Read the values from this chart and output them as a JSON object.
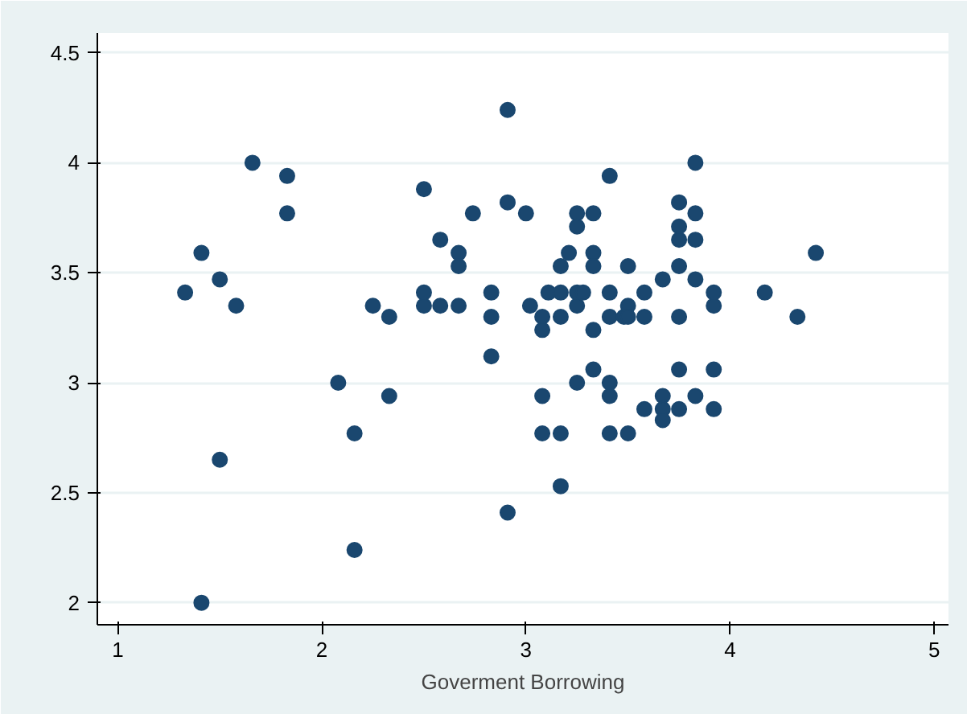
{
  "chart_data": {
    "type": "scatter",
    "xlabel": "Goverment Borrowing",
    "xlim": [
      0.9,
      5.07
    ],
    "ylim": [
      1.9,
      4.59
    ],
    "xticks": [
      1,
      2,
      3,
      4,
      5
    ],
    "yticks": [
      2,
      2.5,
      3,
      3.5,
      4,
      4.5
    ],
    "grid": "y",
    "marker": "circle",
    "series": [
      {
        "color": "#1a476f",
        "x": [
          1.33,
          1.41,
          1.41,
          1.5,
          1.5,
          1.58,
          1.66,
          1.83,
          1.83,
          2.08,
          2.16,
          2.16,
          2.25,
          2.33,
          2.33,
          2.5,
          2.5,
          2.5,
          2.58,
          2.58,
          2.67,
          2.67,
          2.67,
          2.74,
          2.83,
          2.83,
          2.83,
          2.91,
          2.91,
          2.91,
          3.0,
          3.02,
          3.08,
          3.08,
          3.08,
          3.08,
          3.11,
          3.17,
          3.17,
          3.17,
          3.17,
          3.17,
          3.21,
          3.25,
          3.25,
          3.25,
          3.25,
          3.25,
          3.28,
          3.33,
          3.33,
          3.33,
          3.33,
          3.33,
          3.41,
          3.41,
          3.41,
          3.41,
          3.41,
          3.41,
          3.48,
          3.5,
          3.5,
          3.5,
          3.5,
          3.58,
          3.58,
          3.58,
          3.67,
          3.67,
          3.67,
          3.67,
          3.75,
          3.75,
          3.75,
          3.75,
          3.75,
          3.75,
          3.75,
          3.83,
          3.83,
          3.83,
          3.83,
          3.83,
          3.92,
          3.92,
          3.92,
          3.92,
          4.17,
          4.33,
          4.42
        ],
        "values": [
          3.41,
          3.59,
          2.0,
          3.47,
          2.65,
          3.35,
          4.0,
          3.94,
          3.77,
          3.0,
          2.77,
          2.24,
          3.35,
          3.3,
          2.94,
          3.88,
          3.41,
          3.35,
          3.65,
          3.35,
          3.59,
          3.53,
          3.35,
          3.77,
          3.41,
          3.3,
          3.12,
          4.24,
          3.82,
          2.41,
          3.77,
          3.35,
          3.3,
          3.24,
          2.94,
          2.77,
          3.41,
          3.53,
          3.41,
          3.3,
          2.77,
          2.53,
          3.59,
          3.77,
          3.71,
          3.41,
          3.35,
          3.0,
          3.41,
          3.77,
          3.59,
          3.53,
          3.24,
          3.06,
          3.94,
          3.41,
          3.3,
          3.0,
          2.94,
          2.77,
          3.3,
          3.53,
          3.35,
          3.3,
          2.77,
          3.41,
          3.3,
          2.88,
          3.47,
          2.94,
          2.88,
          2.83,
          3.82,
          3.71,
          3.65,
          3.53,
          3.3,
          3.06,
          2.88,
          4.0,
          3.77,
          3.65,
          3.47,
          2.94,
          3.41,
          3.35,
          3.06,
          2.88,
          3.41,
          3.3,
          3.59
        ]
      }
    ]
  }
}
